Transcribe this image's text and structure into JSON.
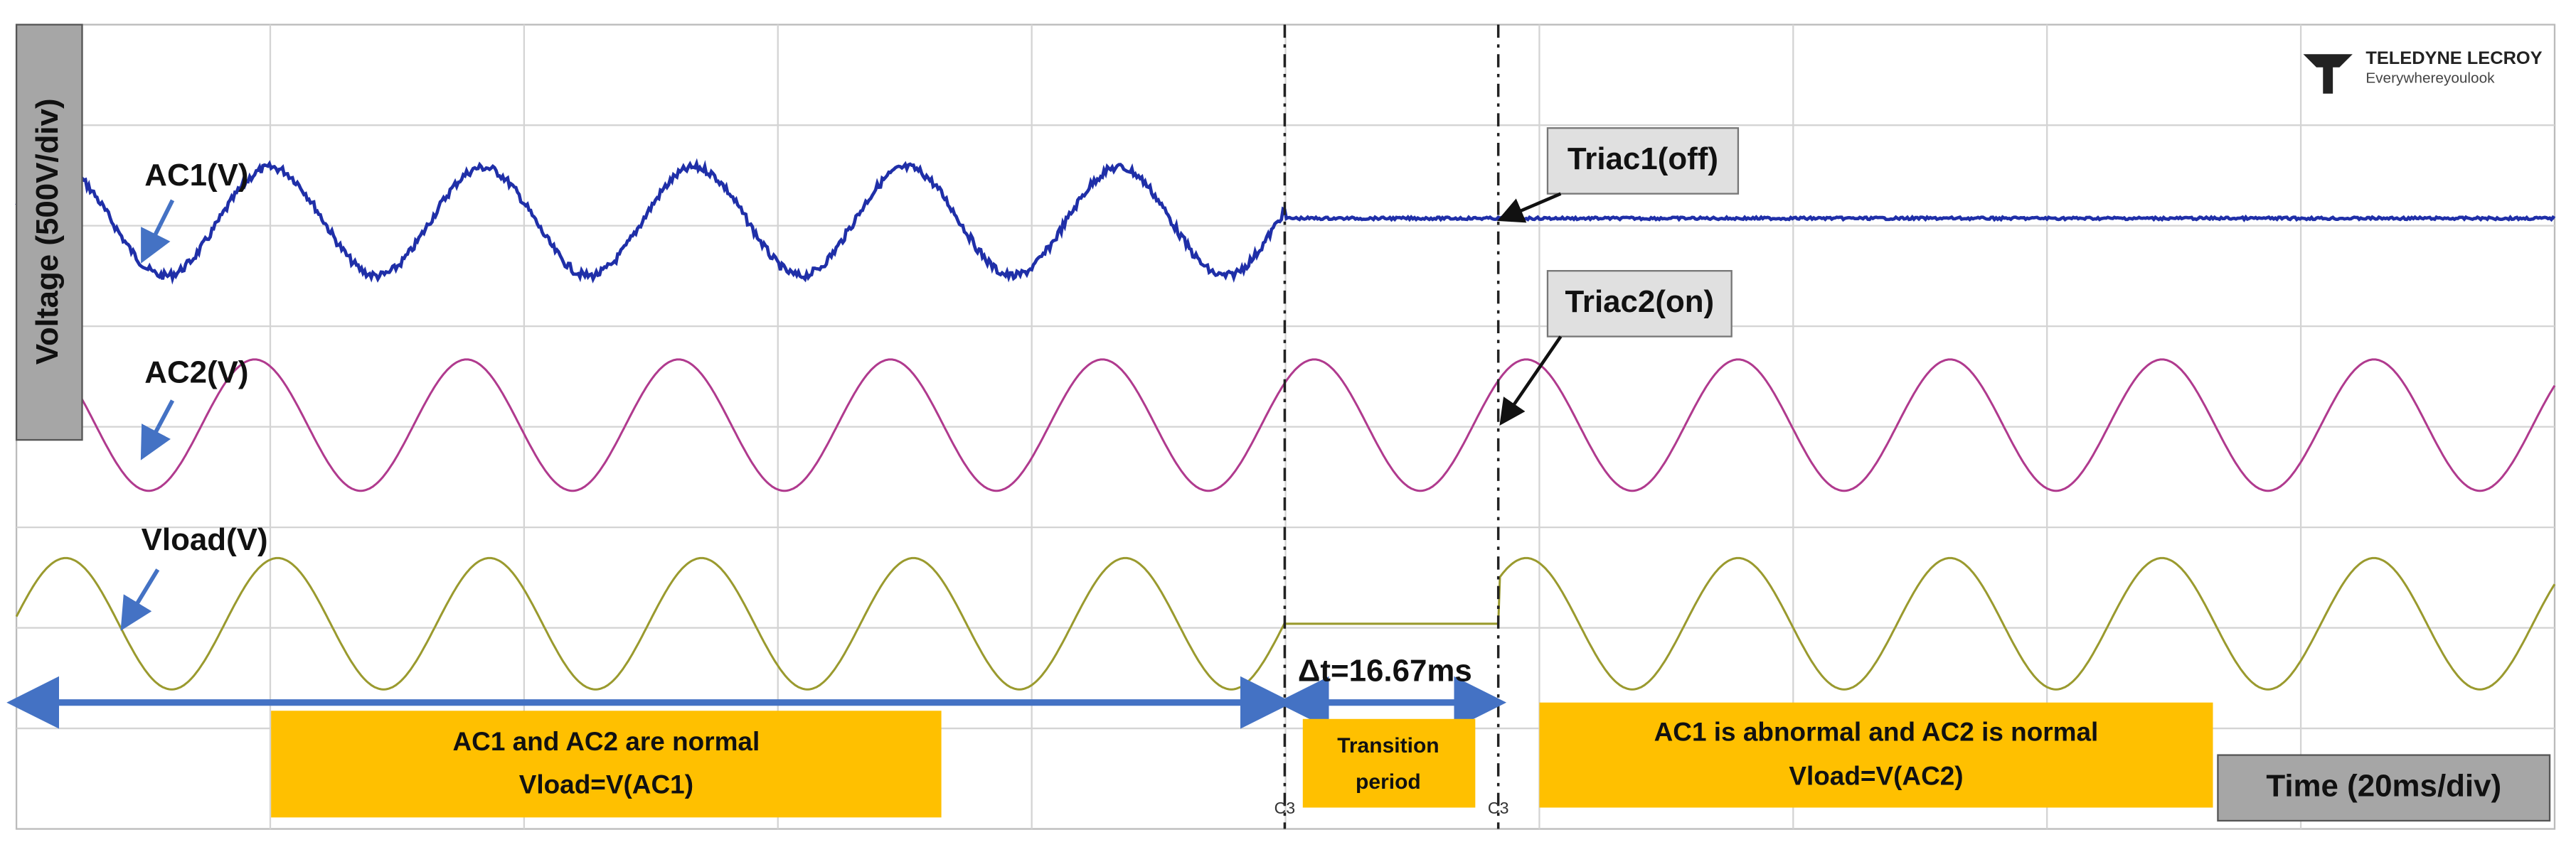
{
  "y_axis_label": "Voltage (500V/div)",
  "x_axis_label": "Time (20ms/div)",
  "logo": {
    "brand": "TELEDYNE LECROY",
    "tagline": "Everywhereyoulook"
  },
  "traces": [
    {
      "label": "AC1(V)"
    },
    {
      "label": "AC2(V)"
    },
    {
      "label": "Vload(V)"
    }
  ],
  "callouts": [
    "Triac1(off)",
    "Triac2(on)"
  ],
  "delta_t": "Δt=16.67ms",
  "regions": [
    {
      "lines": [
        "AC1 and AC2 are normal",
        "Vload=V(AC1)"
      ]
    },
    {
      "lines": [
        "Transition",
        "period"
      ]
    },
    {
      "lines": [
        "AC1 is abnormal and AC2 is normal",
        "Vload=V(AC2)"
      ]
    }
  ],
  "cursor_labels": [
    "C3",
    "C3"
  ]
}
